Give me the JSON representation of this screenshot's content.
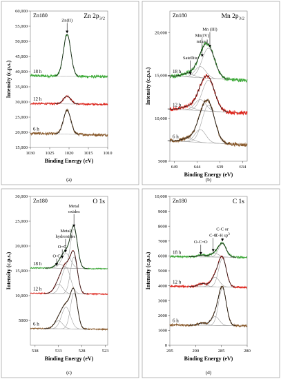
{
  "chart_data": [
    {
      "type": "line",
      "panel_label": "(a)",
      "sample": "Zn180",
      "region": "Zn 2p",
      "region_sub": "3/2",
      "xlabel": "Binding Energy (eV)",
      "ylabel": "Intensity (c.p.s.)",
      "xlim": [
        1030,
        1010
      ],
      "ylim": [
        15000,
        60000
      ],
      "x_ticks": [
        "1030",
        "1025",
        "1020",
        "1015",
        "1010"
      ],
      "y_ticks": [
        "15,000",
        "20,000",
        "25,000",
        "30,000",
        "35,000",
        "40,000",
        "45,000",
        "50,000",
        "55,000",
        "60,000"
      ],
      "annotations": [
        {
          "text": "Zn(II)",
          "x": 1020.5,
          "y": 56500,
          "arrow_to": [
            1020.5,
            52500
          ]
        }
      ],
      "series": [
        {
          "name": "18 h",
          "color": "#3aaa35",
          "baseline": 38300,
          "noise": 450,
          "slope": 600,
          "peaks": [
            {
              "center": 1020.5,
              "height": 13800,
              "width": 0.95
            }
          ]
        },
        {
          "name": "12 h",
          "color": "#e0241b",
          "baseline": 29200,
          "noise": 300,
          "slope": 500,
          "peaks": [
            {
              "center": 1020.5,
              "height": 2600,
              "width": 0.95
            }
          ]
        },
        {
          "name": "6 h",
          "color": "#8a5a2b",
          "baseline": 19100,
          "noise": 450,
          "slope": 900,
          "peaks": [
            {
              "center": 1020.5,
              "height": 7900,
              "width": 0.95
            }
          ]
        }
      ]
    },
    {
      "type": "line",
      "panel_label": "(b)",
      "sample": "Zn180",
      "region": "Mn 2p",
      "region_sub": "3/2",
      "xlabel": "Binding Energy (eV)",
      "ylabel": "Intensity (c.p.s.)",
      "xlim": [
        650,
        633
      ],
      "ylim": [
        5000,
        22500
      ],
      "x_ticks": [
        "649",
        "644",
        "639",
        "634"
      ],
      "y_ticks": [
        "5000",
        "10,000",
        "15,000",
        "20,000"
      ],
      "annotations": [
        {
          "text": "Satellite",
          "x": 645.5,
          "y": 16900,
          "arrow_to": [
            645.5,
            15000
          ]
        },
        {
          "text": "Mn(IV)",
          "x": 642.9,
          "y": 19500,
          "arrow_to": [
            642.9,
            17100
          ]
        },
        {
          "text": "mixed",
          "x": 642.9,
          "y": 18800,
          "arrow_to": null
        },
        {
          "text": "Mn (III)",
          "x": 641.2,
          "y": 20200,
          "arrow_to": [
            641.2,
            18200
          ]
        }
      ],
      "series": [
        {
          "name": "18 h",
          "color": "#3aaa35",
          "baseline": 14400,
          "noise": 220,
          "slope": 900,
          "peaks": [
            {
              "center": 641.5,
              "height": 3500,
              "width": 1.4
            },
            {
              "center": 643.3,
              "height": 1300,
              "width": 1.2
            },
            {
              "center": 646.0,
              "height": 400,
              "width": 1.3
            }
          ]
        },
        {
          "name": "12 h",
          "color": "#e0241b",
          "baseline": 10600,
          "noise": 220,
          "slope": 800,
          "peaks": [
            {
              "center": 641.5,
              "height": 3600,
              "width": 1.4
            },
            {
              "center": 643.3,
              "height": 1300,
              "width": 1.2
            },
            {
              "center": 646.0,
              "height": 400,
              "width": 1.3
            }
          ]
        },
        {
          "name": "6 h",
          "color": "#8a5a2b",
          "baseline": 6900,
          "noise": 220,
          "slope": 800,
          "peaks": [
            {
              "center": 641.5,
              "height": 4400,
              "width": 1.4
            },
            {
              "center": 643.3,
              "height": 1500,
              "width": 1.2
            },
            {
              "center": 646.0,
              "height": 400,
              "width": 1.3
            }
          ]
        }
      ]
    },
    {
      "type": "line",
      "panel_label": "(c)",
      "sample": "Zn180",
      "region": "O 1s",
      "region_sub": "",
      "xlabel": "Binding Energy (eV)",
      "ylabel": "Intensity (c.p.s.)",
      "xlim": [
        539,
        522.5
      ],
      "ylim": [
        0,
        30000
      ],
      "x_ticks": [
        "538",
        "533",
        "528",
        "523"
      ],
      "y_ticks": [
        "5000",
        "10,000",
        "15,000",
        "20,000",
        "25,000",
        "30,000"
      ],
      "annotations": [
        {
          "text": "Metal",
          "x": 529.7,
          "y": 27800,
          "arrow_to": null
        },
        {
          "text": "oxides",
          "x": 529.7,
          "y": 26700,
          "arrow_to": [
            529.7,
            23700
          ]
        },
        {
          "text": "Metal",
          "x": 531.5,
          "y": 22800,
          "arrow_to": null
        },
        {
          "text": "hydroxides",
          "x": 531.5,
          "y": 21700,
          "arrow_to": [
            531.5,
            18600
          ]
        },
        {
          "text": "O=C",
          "x": 532.2,
          "y": 19600,
          "arrow_to": [
            532.2,
            17400
          ]
        },
        {
          "text": "O-C",
          "x": 533.4,
          "y": 17700,
          "arrow_to": [
            533.4,
            15900
          ]
        }
      ],
      "series": [
        {
          "name": "18 h",
          "color": "#3aaa35",
          "baseline": 15400,
          "noise": 110,
          "slope": 300,
          "peaks": [
            {
              "center": 529.7,
              "height": 7900,
              "width": 0.75
            },
            {
              "center": 531.4,
              "height": 3000,
              "width": 0.95
            },
            {
              "center": 532.8,
              "height": 800,
              "width": 0.9
            }
          ]
        },
        {
          "name": "12 h",
          "color": "#e0241b",
          "baseline": 10300,
          "noise": 110,
          "slope": 300,
          "peaks": [
            {
              "center": 529.7,
              "height": 7400,
              "width": 0.75
            },
            {
              "center": 531.4,
              "height": 5300,
              "width": 0.95
            },
            {
              "center": 533.0,
              "height": 1900,
              "width": 0.9
            }
          ]
        },
        {
          "name": "6 h",
          "color": "#8a5a2b",
          "baseline": 3200,
          "noise": 110,
          "slope": 300,
          "peaks": [
            {
              "center": 529.7,
              "height": 7200,
              "width": 0.75
            },
            {
              "center": 531.4,
              "height": 4400,
              "width": 0.95
            },
            {
              "center": 533.0,
              "height": 1600,
              "width": 0.9
            }
          ]
        }
      ]
    },
    {
      "type": "line",
      "panel_label": "(d)",
      "sample": "Zn180",
      "region": "C 1s",
      "region_sub": "",
      "xlabel": "Binding Energy (eV)",
      "ylabel": "Intensity (c.p.s.)",
      "xlim": [
        295,
        280
      ],
      "ylim": [
        0,
        10000
      ],
      "x_ticks": [
        "295",
        "290",
        "285",
        "280"
      ],
      "y_ticks": [
        "0",
        "1000",
        "2000",
        "3000",
        "4000",
        "5000",
        "6000",
        "7000",
        "8000",
        "9000",
        "10,000"
      ],
      "annotations": [
        {
          "text": "C-C or",
          "x": 284.8,
          "y": 7700,
          "arrow_to": null
        },
        {
          "text": "C-H sp",
          "x": 284.8,
          "y": 7300,
          "arrow_to": [
            284.8,
            6950
          ]
        },
        {
          "text": "C-O",
          "x": 286.6,
          "y": 7300,
          "arrow_to": [
            286.6,
            6250
          ]
        },
        {
          "text": "O-C=O",
          "x": 289.0,
          "y": 6850,
          "arrow_to": [
            289.0,
            6050
          ]
        }
      ],
      "superscript": "3",
      "series": [
        {
          "name": "18 h",
          "color": "#3aaa35",
          "baseline": 5900,
          "noise": 70,
          "slope": 100,
          "peaks": [
            {
              "center": 284.8,
              "height": 900,
              "width": 0.75
            },
            {
              "center": 286.3,
              "height": 250,
              "width": 0.8
            },
            {
              "center": 288.7,
              "height": 120,
              "width": 0.8
            }
          ]
        },
        {
          "name": "12 h",
          "color": "#e0241b",
          "baseline": 3900,
          "noise": 70,
          "slope": 100,
          "peaks": [
            {
              "center": 284.8,
              "height": 1900,
              "width": 0.75
            },
            {
              "center": 286.2,
              "height": 650,
              "width": 0.8
            },
            {
              "center": 288.7,
              "height": 200,
              "width": 0.8
            }
          ]
        },
        {
          "name": "6 h",
          "color": "#8a5a2b",
          "baseline": 1300,
          "noise": 70,
          "slope": 100,
          "peaks": [
            {
              "center": 284.8,
              "height": 2500,
              "width": 0.75
            },
            {
              "center": 286.2,
              "height": 600,
              "width": 0.8
            },
            {
              "center": 288.7,
              "height": 150,
              "width": 0.8
            }
          ]
        }
      ]
    }
  ]
}
